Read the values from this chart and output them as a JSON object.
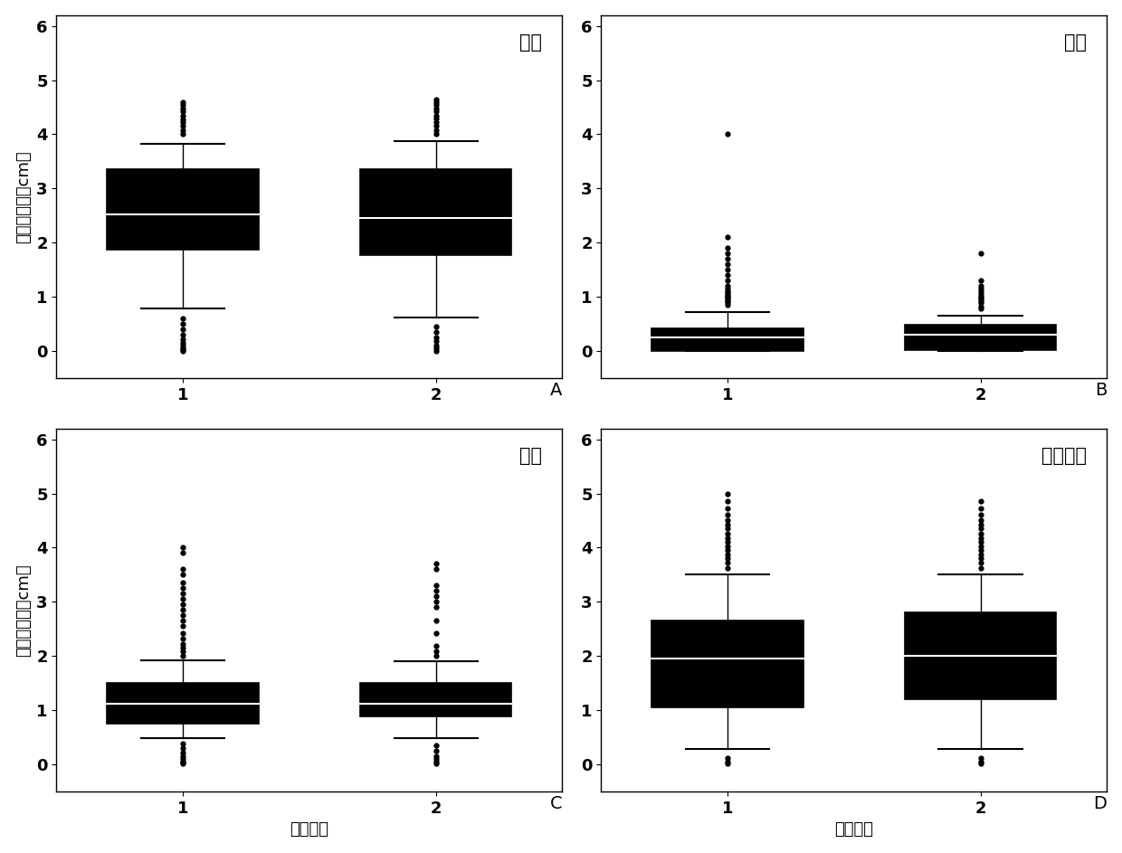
{
  "panels": [
    {
      "label": "A",
      "title": "土培",
      "ylabel": "中胚轴长度（cm）",
      "xlabel": "",
      "ylim": [
        -0.5,
        6.2
      ],
      "yticks": [
        0,
        1,
        2,
        3,
        4,
        5,
        6
      ],
      "xticks": [
        1,
        2
      ],
      "boxes": [
        {
          "x": 1,
          "q1": 1.88,
          "median": 2.52,
          "q3": 3.35,
          "whislo": 0.78,
          "whishi": 3.83,
          "fliers_above": [
            4.0,
            4.08,
            4.15,
            4.22,
            4.28,
            4.35,
            4.42,
            4.48,
            4.55,
            4.6
          ],
          "fliers_below": [
            0.6,
            0.5,
            0.4,
            0.3,
            0.22,
            0.16,
            0.1,
            0.06,
            0.03,
            0.01
          ]
        },
        {
          "x": 2,
          "q1": 1.78,
          "median": 2.45,
          "q3": 3.35,
          "whislo": 0.62,
          "whishi": 3.88,
          "fliers_above": [
            4.0,
            4.08,
            4.15,
            4.22,
            4.3,
            4.35,
            4.42,
            4.48,
            4.55,
            4.6,
            4.65
          ],
          "fliers_below": [
            0.45,
            0.35,
            0.25,
            0.18,
            0.1,
            0.05,
            0.01
          ]
        }
      ]
    },
    {
      "label": "B",
      "title": "沙培",
      "ylabel": "",
      "xlabel": "",
      "ylim": [
        -0.5,
        6.2
      ],
      "yticks": [
        0,
        1,
        2,
        3,
        4,
        5,
        6
      ],
      "xticks": [
        1,
        2
      ],
      "boxes": [
        {
          "x": 1,
          "q1": 0.0,
          "median": 0.25,
          "q3": 0.42,
          "whislo": 0.0,
          "whishi": 0.72,
          "fliers_above": [
            0.85,
            0.9,
            0.92,
            0.95,
            0.98,
            1.0,
            1.02,
            1.05,
            1.08,
            1.1,
            1.15,
            1.2,
            1.3,
            1.4,
            1.5,
            1.6,
            1.7,
            1.8,
            1.9,
            2.1,
            4.0
          ],
          "fliers_below": []
        },
        {
          "x": 2,
          "q1": 0.02,
          "median": 0.3,
          "q3": 0.48,
          "whislo": 0.0,
          "whishi": 0.65,
          "fliers_above": [
            0.78,
            0.82,
            0.88,
            0.92,
            0.95,
            0.98,
            1.0,
            1.05,
            1.1,
            1.15,
            1.2,
            1.3,
            1.8
          ],
          "fliers_below": []
        }
      ]
    },
    {
      "label": "C",
      "title": "水培",
      "ylabel": "中胚轴长度（cm）",
      "xlabel": "试验重复",
      "ylim": [
        -0.5,
        6.2
      ],
      "yticks": [
        0,
        1,
        2,
        3,
        4,
        5,
        6
      ],
      "xticks": [
        1,
        2
      ],
      "boxes": [
        {
          "x": 1,
          "q1": 0.75,
          "median": 1.12,
          "q3": 1.5,
          "whislo": 0.48,
          "whishi": 1.92,
          "fliers_above": [
            2.0,
            2.08,
            2.15,
            2.22,
            2.32,
            2.42,
            2.55,
            2.65,
            2.75,
            2.85,
            2.95,
            3.05,
            3.15,
            3.25,
            3.35,
            3.5,
            3.6,
            3.9,
            4.0
          ],
          "fliers_below": [
            0.38,
            0.3,
            0.22,
            0.16,
            0.1,
            0.06,
            0.03,
            0.01
          ]
        },
        {
          "x": 2,
          "q1": 0.88,
          "median": 1.12,
          "q3": 1.5,
          "whislo": 0.48,
          "whishi": 1.9,
          "fliers_above": [
            2.0,
            2.08,
            2.18,
            2.42,
            2.65,
            2.9,
            3.0,
            3.1,
            3.2,
            3.3,
            3.6,
            3.7
          ],
          "fliers_below": [
            0.35,
            0.25,
            0.16,
            0.1,
            0.05,
            0.01
          ]
        }
      ]
    },
    {
      "label": "D",
      "title": "营养土培",
      "ylabel": "",
      "xlabel": "试验重复",
      "ylim": [
        -0.5,
        6.2
      ],
      "yticks": [
        0,
        1,
        2,
        3,
        4,
        5,
        6
      ],
      "xticks": [
        1,
        2
      ],
      "boxes": [
        {
          "x": 1,
          "q1": 1.05,
          "median": 1.95,
          "q3": 2.65,
          "whislo": 0.28,
          "whishi": 3.5,
          "fliers_above": [
            3.62,
            3.72,
            3.8,
            3.88,
            3.95,
            4.02,
            4.1,
            4.18,
            4.25,
            4.35,
            4.42,
            4.5,
            4.6,
            4.72,
            4.85,
            5.0
          ],
          "fliers_below": [
            0.12,
            0.06,
            0.02
          ]
        },
        {
          "x": 2,
          "q1": 1.2,
          "median": 2.0,
          "q3": 2.8,
          "whislo": 0.28,
          "whishi": 3.5,
          "fliers_above": [
            3.62,
            3.72,
            3.8,
            3.88,
            3.95,
            4.02,
            4.1,
            4.18,
            4.25,
            4.35,
            4.42,
            4.5,
            4.6,
            4.72,
            4.85
          ],
          "fliers_below": [
            0.12,
            0.06,
            0.02
          ]
        }
      ]
    }
  ],
  "box_color": "#000000",
  "box_facecolor": "#000000",
  "flier_color": "#000000",
  "flier_size": 3.5,
  "box_width": 0.6,
  "whisker_color": "#000000",
  "median_color": "#ffffff",
  "cap_color": "#000000",
  "background_color": "#ffffff",
  "text_color": "#000000",
  "title_fontsize": 15,
  "label_fontsize": 13,
  "tick_fontsize": 13,
  "panel_label_fontsize": 14
}
